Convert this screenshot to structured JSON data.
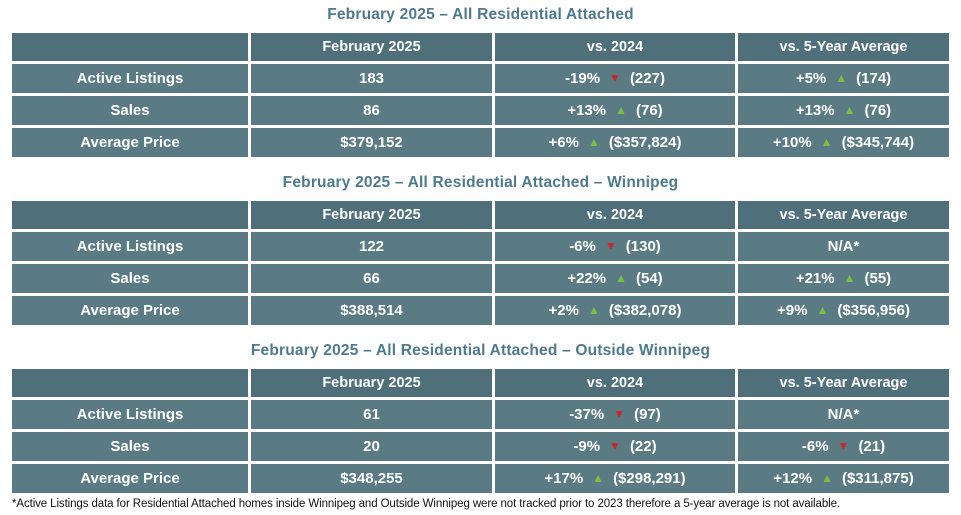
{
  "colors": {
    "header_bg": "#4f707a",
    "row_bg": "#5a7b83",
    "title_text": "#4d7a8e",
    "up_green": "#7ac143",
    "down_red": "#c9252d",
    "cell_text": "#ffffff"
  },
  "columns": [
    "",
    "February 2025",
    "vs. 2024",
    "vs. 5-Year Average"
  ],
  "footnote": "*Active Listings data for Residential Attached homes inside Winnipeg and Outside Winnipeg were not tracked prior to 2023 therefore a 5-year average is not available.",
  "chart_data": [
    {
      "type": "table",
      "title": "February 2025 – All Residential Attached",
      "columns": [
        "",
        "February 2025",
        "vs. 2024",
        "vs. 5-Year Average"
      ],
      "rows": [
        {
          "label": "Active Listings",
          "current": "183",
          "vs_2024": {
            "pct": "-19%",
            "arrow": "▼",
            "arrow_color": "#c9252d",
            "ref": "(227)"
          },
          "vs_5yr": {
            "pct": "+5%",
            "arrow": "▲",
            "arrow_color": "#7ac143",
            "ref": "(174)"
          }
        },
        {
          "label": "Sales",
          "current": "86",
          "vs_2024": {
            "pct": "+13%",
            "arrow": "▲",
            "arrow_color": "#7ac143",
            "ref": "(76)"
          },
          "vs_5yr": {
            "pct": "+13%",
            "arrow": "▲",
            "arrow_color": "#7ac143",
            "ref": "(76)"
          }
        },
        {
          "label": "Average Price",
          "current": "$379,152",
          "vs_2024": {
            "pct": "+6%",
            "arrow": "▲",
            "arrow_color": "#7ac143",
            "ref": "($357,824)"
          },
          "vs_5yr": {
            "pct": "+10%",
            "arrow": "▲",
            "arrow_color": "#7ac143",
            "ref": "($345,744)"
          }
        }
      ]
    },
    {
      "type": "table",
      "title": "February 2025 – All Residential Attached – Winnipeg",
      "columns": [
        "",
        "February 2025",
        "vs. 2024",
        "vs. 5-Year Average"
      ],
      "rows": [
        {
          "label": "Active Listings",
          "current": "122",
          "vs_2024": {
            "pct": "-6%",
            "arrow": "▼",
            "arrow_color": "#c9252d",
            "ref": "(130)"
          },
          "vs_5yr": {
            "pct": "N/A*",
            "arrow": "",
            "ref": ""
          }
        },
        {
          "label": "Sales",
          "current": "66",
          "vs_2024": {
            "pct": "+22%",
            "arrow": "▲",
            "arrow_color": "#7ac143",
            "ref": "(54)"
          },
          "vs_5yr": {
            "pct": "+21%",
            "arrow": "▲",
            "arrow_color": "#7ac143",
            "ref": "(55)"
          }
        },
        {
          "label": "Average Price",
          "current": "$388,514",
          "vs_2024": {
            "pct": "+2%",
            "arrow": "▲",
            "arrow_color": "#7ac143",
            "ref": "($382,078)"
          },
          "vs_5yr": {
            "pct": "+9%",
            "arrow": "▲",
            "arrow_color": "#7ac143",
            "ref": "($356,956)"
          }
        }
      ]
    },
    {
      "type": "table",
      "title": "February 2025 – All Residential Attached – Outside Winnipeg",
      "columns": [
        "",
        "February 2025",
        "vs. 2024",
        "vs. 5-Year Average"
      ],
      "rows": [
        {
          "label": "Active Listings",
          "current": "61",
          "vs_2024": {
            "pct": "-37%",
            "arrow": "▼",
            "arrow_color": "#c9252d",
            "ref": "(97)"
          },
          "vs_5yr": {
            "pct": "N/A*",
            "arrow": "",
            "ref": ""
          }
        },
        {
          "label": "Sales",
          "current": "20",
          "vs_2024": {
            "pct": "-9%",
            "arrow": "▼",
            "arrow_color": "#c9252d",
            "ref": "(22)"
          },
          "vs_5yr": {
            "pct": "-6%",
            "arrow": "▼",
            "arrow_color": "#c9252d",
            "ref": "(21)"
          }
        },
        {
          "label": "Average Price",
          "current": "$348,255",
          "vs_2024": {
            "pct": "+17%",
            "arrow": "▲",
            "arrow_color": "#7ac143",
            "ref": "($298,291)"
          },
          "vs_5yr": {
            "pct": "+12%",
            "arrow": "▲",
            "arrow_color": "#7ac143",
            "ref": "($311,875)"
          }
        }
      ]
    }
  ]
}
